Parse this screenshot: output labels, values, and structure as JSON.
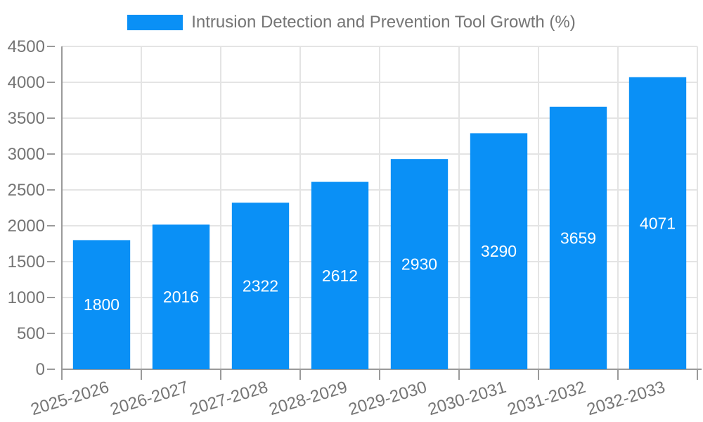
{
  "legend": {
    "label": "Intrusion Detection and Prevention Tool Growth (%)"
  },
  "chart_data": {
    "type": "bar",
    "title": "Intrusion Detection and Prevention Tool Growth (%)",
    "categories": [
      "2025-2026",
      "2026-2027",
      "2027-2028",
      "2028-2029",
      "2029-2030",
      "2030-2031",
      "2031-2032",
      "2032-2033"
    ],
    "values": [
      1800,
      2016,
      2322,
      2612,
      2930,
      3290,
      3659,
      4071
    ],
    "xlabel": "",
    "ylabel": "",
    "ylim": [
      0,
      4500
    ],
    "yticks": [
      0,
      500,
      1000,
      1500,
      2000,
      2500,
      3000,
      3500,
      4000,
      4500
    ],
    "grid": true,
    "legend_position": "top",
    "bar_color": "#0a90f6",
    "bar_label_color": "#ffffff",
    "grid_color": "#e4e4e4",
    "axis_line_color": "#9a9a9a",
    "axis_text_color": "#757575",
    "x_label_rotation_deg": -17
  }
}
